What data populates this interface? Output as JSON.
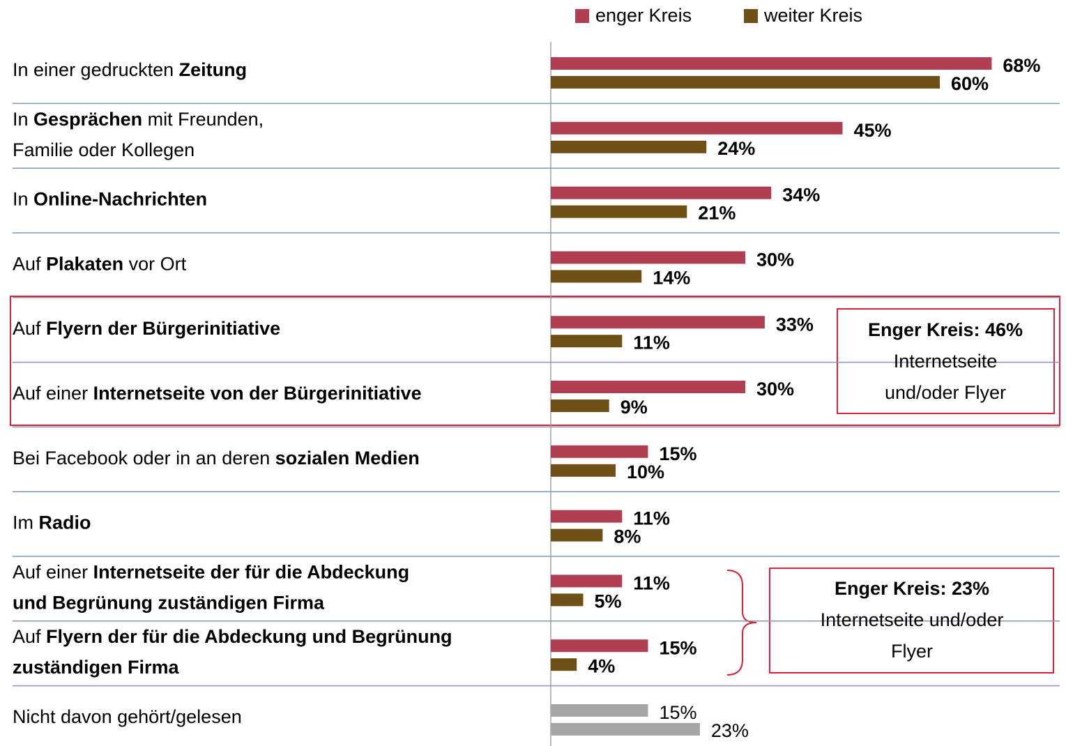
{
  "chart_data": {
    "type": "hbar",
    "categories": [
      [
        [
          {
            "text": "In einer gedruckten ",
            "bold": false
          },
          {
            "text": "Zeitung",
            "bold": true
          }
        ]
      ],
      [
        [
          {
            "text": "In ",
            "bold": false
          },
          {
            "text": "Gesprächen",
            "bold": true
          },
          {
            "text": " mit Freunden,",
            "bold": false
          }
        ],
        [
          {
            "text": "Familie oder Kollegen",
            "bold": false
          }
        ]
      ],
      [
        [
          {
            "text": "In ",
            "bold": false
          },
          {
            "text": "Online-Nachrichten",
            "bold": true
          }
        ]
      ],
      [
        [
          {
            "text": "Auf ",
            "bold": false
          },
          {
            "text": "Plakaten",
            "bold": true
          },
          {
            "text": " vor Ort",
            "bold": false
          }
        ]
      ],
      [
        [
          {
            "text": "Auf ",
            "bold": false
          },
          {
            "text": "Flyern der Bürgerinitiative",
            "bold": true
          }
        ]
      ],
      [
        [
          {
            "text": "Auf einer ",
            "bold": false
          },
          {
            "text": "Internetseite von der Bürgerinitiative",
            "bold": true
          }
        ]
      ],
      [
        [
          {
            "text": "Bei Facebook oder in an deren ",
            "bold": false
          },
          {
            "text": "sozialen Medien",
            "bold": true
          }
        ]
      ],
      [
        [
          {
            "text": "Im ",
            "bold": false
          },
          {
            "text": "Radio",
            "bold": true
          }
        ]
      ],
      [
        [
          {
            "text": "Auf einer ",
            "bold": false
          },
          {
            "text": "Internetseite der für die Abdeckung",
            "bold": true
          }
        ],
        [
          {
            "text": "und Begrünung zuständigen Firma",
            "bold": true
          }
        ]
      ],
      [
        [
          {
            "text": "Auf ",
            "bold": false
          },
          {
            "text": "Flyern der für die Abdeckung und Begrünung",
            "bold": true
          }
        ],
        [
          {
            "text": "zuständigen Firma",
            "bold": true
          }
        ]
      ],
      [
        [
          {
            "text": "Nicht davon gehört/gelesen",
            "bold": false
          }
        ]
      ]
    ],
    "series": [
      {
        "name": "enger Kreis",
        "color": "#b03f52",
        "colors": [
          "#b03f52",
          "#b03f52",
          "#b03f52",
          "#b03f52",
          "#b03f52",
          "#b03f52",
          "#b03f52",
          "#b03f52",
          "#b03f52",
          "#b03f52",
          "#a6a6a6"
        ],
        "values": [
          68,
          45,
          34,
          30,
          33,
          30,
          15,
          11,
          11,
          15,
          15
        ],
        "value_labels": [
          "68%",
          "45%",
          "34%",
          "30%",
          "33%",
          "30%",
          "15%",
          "11%",
          "11%",
          "15%",
          "15%"
        ]
      },
      {
        "name": "weiter Kreis",
        "color": "#6f5016",
        "colors": [
          "#6f5016",
          "#6f5016",
          "#6f5016",
          "#6f5016",
          "#6f5016",
          "#6f5016",
          "#6f5016",
          "#6f5016",
          "#6f5016",
          "#6f5016",
          "#a6a6a6"
        ],
        "values": [
          60,
          24,
          21,
          14,
          11,
          9,
          10,
          8,
          5,
          4,
          23
        ],
        "value_labels": [
          "60%",
          "24%",
          "21%",
          "14%",
          "11%",
          "9%",
          "10%",
          "8%",
          "5%",
          "4%",
          "23%"
        ]
      }
    ],
    "annotations": [
      [
        "Enger Kreis: 46%",
        "Internetseite",
        "und/oder Flyer"
      ],
      [
        "Enger Kreis: 23%",
        "Internetseite und/oder",
        "Flyer"
      ]
    ]
  }
}
